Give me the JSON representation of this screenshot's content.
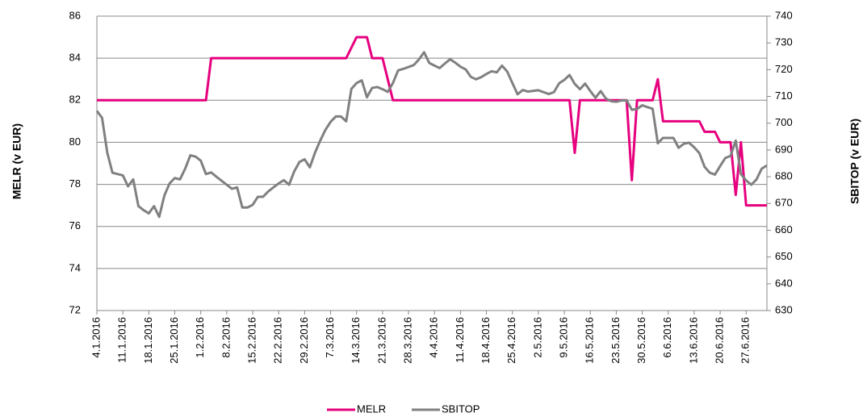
{
  "chart_data": {
    "type": "line",
    "y_label": "MELR (v EUR)",
    "y2_label": "SBITOP (v EUR)",
    "categories": [
      "4.1.2016",
      null,
      null,
      null,
      null,
      "11.1.2016",
      null,
      null,
      null,
      null,
      "18.1.2016",
      null,
      null,
      null,
      null,
      "25.1.2016",
      null,
      null,
      null,
      null,
      "1.2.2016",
      null,
      null,
      null,
      null,
      "8.2.2016",
      null,
      null,
      null,
      null,
      "15.2.2016",
      null,
      null,
      null,
      null,
      "22.2.2016",
      null,
      null,
      null,
      null,
      "29.2.2016",
      null,
      null,
      null,
      null,
      "7.3.2016",
      null,
      null,
      null,
      null,
      "14.3.2016",
      null,
      null,
      null,
      null,
      "21.3.2016",
      null,
      null,
      null,
      null,
      "28.3.2016",
      null,
      null,
      null,
      null,
      "4.4.2016",
      null,
      null,
      null,
      null,
      "11.4.2016",
      null,
      null,
      null,
      null,
      "18.4.2016",
      null,
      null,
      null,
      null,
      "25.4.2016",
      null,
      null,
      null,
      null,
      "2.5.2016",
      null,
      null,
      null,
      null,
      "9.5.2016",
      null,
      null,
      null,
      null,
      "16.5.2016",
      null,
      null,
      null,
      null,
      "23.5.2016",
      null,
      null,
      null,
      null,
      "30.5.2016",
      null,
      null,
      null,
      null,
      "6.6.2016",
      null,
      null,
      null,
      null,
      "13.6.2016",
      null,
      null,
      null,
      null,
      "20.6.2016",
      null,
      null,
      null,
      null,
      "27.6.2016",
      null,
      null,
      null,
      null
    ],
    "series": [
      {
        "name": "MELR",
        "color": "#e6007e",
        "values": [
          82,
          82,
          82,
          82,
          82,
          82,
          82,
          82,
          82,
          82,
          82,
          82,
          82,
          82,
          82,
          82,
          82,
          82,
          82,
          82,
          82,
          82,
          84,
          84,
          84,
          84,
          84,
          84,
          84,
          84,
          84,
          84,
          84,
          84,
          84,
          84,
          84,
          84,
          84,
          84,
          84,
          84,
          84,
          84,
          84,
          84,
          84,
          84,
          84,
          84.5,
          85,
          85,
          85,
          84,
          84,
          84,
          83,
          82,
          82,
          82,
          82,
          82,
          82,
          82,
          82,
          82,
          82,
          82,
          82,
          82,
          82,
          82,
          82,
          82,
          82,
          82,
          82,
          82,
          82,
          82,
          82,
          82,
          82,
          82,
          82,
          82,
          82,
          82,
          82,
          82,
          82,
          82,
          79.5,
          82,
          82,
          82,
          82,
          82,
          82,
          82,
          82,
          82,
          82,
          78.2,
          82,
          82,
          82,
          82,
          83,
          81,
          81,
          81,
          81,
          81,
          81,
          81,
          81,
          80.5,
          80.5,
          80.5,
          80,
          80,
          80,
          77.5,
          80,
          77,
          77,
          77,
          77,
          77
        ]
      },
      {
        "name": "SBITOP",
        "color": "#808080",
        "axis": "y2",
        "values": [
          704.6,
          702,
          689,
          681.5,
          681,
          680.5,
          676.4,
          679,
          669,
          667.5,
          666.3,
          669,
          665,
          673,
          677.5,
          679.5,
          679,
          683,
          688,
          687.5,
          686,
          681,
          681.6,
          680,
          678.5,
          677,
          675.5,
          676,
          668.5,
          668.5,
          669.5,
          672.5,
          672.5,
          674.5,
          676,
          677.5,
          678.7,
          677,
          682,
          685.5,
          686.5,
          683.5,
          689,
          693.5,
          697.5,
          700.5,
          702.5,
          702.5,
          700.7,
          712.8,
          715,
          716,
          709.7,
          713.2,
          713.5,
          712.7,
          711.7,
          715,
          719.7,
          720.3,
          721,
          721.7,
          723.8,
          726.5,
          722.5,
          721.5,
          720.6,
          722.3,
          723.9,
          722.6,
          721.1,
          720.1,
          717.3,
          716.4,
          717.2,
          718.4,
          719.4,
          719,
          721.5,
          719.3,
          715,
          710.8,
          712.4,
          711.8,
          712.1,
          712.3,
          711.6,
          710.9,
          711.6,
          714.9,
          716.2,
          718,
          714.7,
          712.7,
          714.8,
          712,
          709.5,
          712,
          709.2,
          708.2,
          708,
          708.5,
          708.5,
          705,
          705.3,
          706.7,
          706,
          705.4,
          692.5,
          694.5,
          694.5,
          694.5,
          690.8,
          692.3,
          692.7,
          691,
          688.8,
          683.7,
          681.5,
          680.8,
          684,
          687,
          687.8,
          693.5,
          681,
          678.6,
          677,
          679,
          683,
          684.2
        ]
      }
    ],
    "ylim": [
      72,
      86
    ],
    "yticks": [
      72,
      74,
      76,
      78,
      80,
      82,
      84,
      86
    ],
    "y2lim": [
      630,
      740
    ],
    "y2ticks": [
      630,
      640,
      650,
      660,
      670,
      680,
      690,
      700,
      710,
      720,
      730,
      740
    ],
    "grid": true,
    "legend": "bottom"
  }
}
